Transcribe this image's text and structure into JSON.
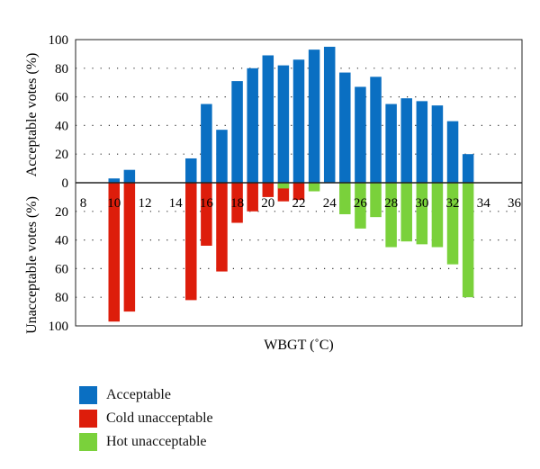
{
  "chart_data": {
    "type": "bar",
    "xlabel": "WBGT (˚C)",
    "ylabel_top": "Acceptable votes (%)",
    "ylabel_bottom": "Unacceptable votes (%)",
    "xlim": [
      7.5,
      36.5
    ],
    "x_ticks": [
      8,
      10,
      12,
      14,
      16,
      18,
      20,
      22,
      24,
      26,
      28,
      30,
      32,
      34,
      36
    ],
    "y_top_ticks": [
      100,
      80,
      60,
      40,
      20,
      0
    ],
    "y_bottom_ticks": [
      20,
      40,
      60,
      80,
      100
    ],
    "ylim": [
      -100,
      100
    ],
    "grid": "dotted-horizontal",
    "legend_position": "bottom-left",
    "series": [
      {
        "name": "Acceptable",
        "color": "#0a6fc2",
        "direction": "up",
        "x": [
          10,
          11,
          15,
          16,
          17,
          18,
          19,
          20,
          21,
          22,
          23,
          24,
          25,
          26,
          27,
          28,
          29,
          30,
          31,
          32,
          33
        ],
        "values": [
          3,
          9,
          17,
          55,
          37,
          71,
          80,
          89,
          82,
          86,
          93,
          95,
          77,
          67,
          74,
          55,
          59,
          57,
          54,
          43,
          20
        ]
      },
      {
        "name": "Cold unacceptable",
        "color": "#dd1d0b",
        "direction": "down",
        "x": [
          10,
          11,
          15,
          16,
          17,
          18,
          19,
          20,
          21,
          22
        ],
        "values": [
          97,
          90,
          82,
          44,
          62,
          28,
          20,
          10,
          13,
          12
        ]
      },
      {
        "name": "Hot unacceptable",
        "color": "#7ad13b",
        "direction": "down",
        "x": [
          21,
          23,
          25,
          26,
          27,
          28,
          29,
          30,
          31,
          32,
          33
        ],
        "values": [
          4,
          6,
          22,
          32,
          24,
          45,
          41,
          43,
          45,
          57,
          80
        ]
      }
    ]
  }
}
